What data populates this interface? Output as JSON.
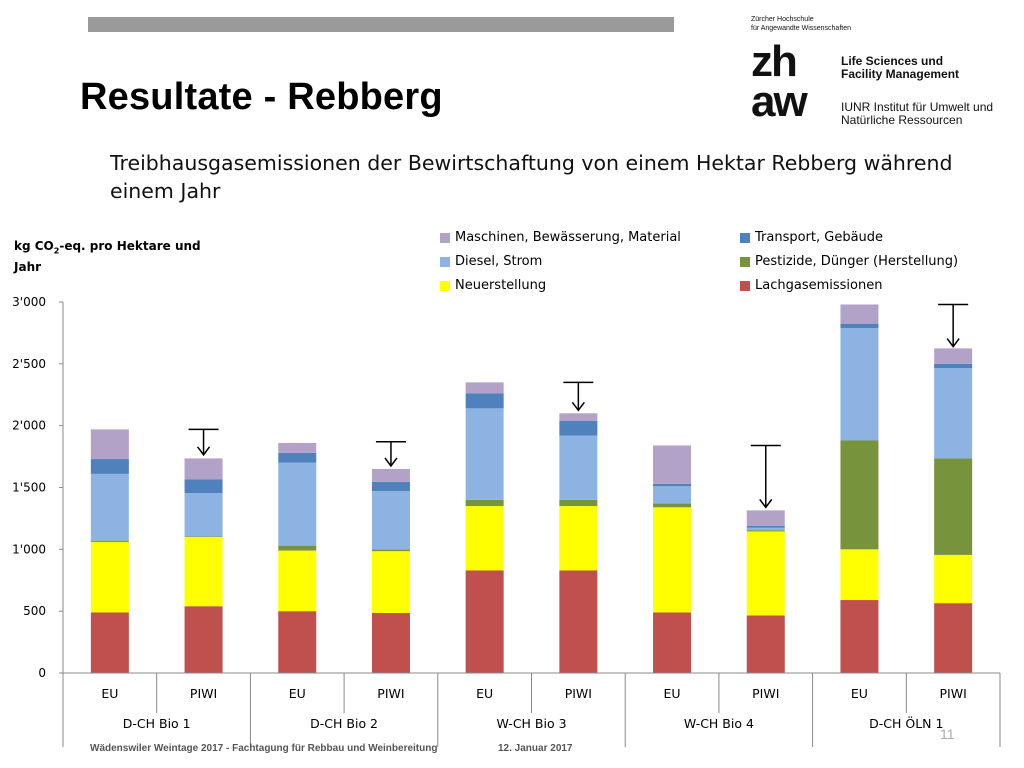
{
  "slide": {
    "title": "Resultate - Rebberg",
    "subtitle": "Treibhausgasemissionen der Bewirtschaftung von einem Hektar Rebberg während einem Jahr",
    "page_number": "11"
  },
  "logo": {
    "org_line1": "Zürcher Hochschule",
    "org_line2": "für Angewandte Wissenschaften",
    "mark_line1": "zh",
    "mark_line2": "aw",
    "school_line1": "Life Sciences und",
    "school_line2": "Facility Management",
    "inst_line1": "IUNR Institut für Umwelt und",
    "inst_line2": "Natürliche Ressourcen"
  },
  "footer": {
    "event": "Wädenswiler Weintage 2017 - Fachtagung für Rebbau und Weinbereitung",
    "date": "12. Januar 2017"
  },
  "chart_data": {
    "type": "bar",
    "stacked": true,
    "ylabel_main": "kg CO",
    "ylabel_sub": "2",
    "ylabel_rest": "-eq. pro Hektare und Jahr",
    "ylim": [
      0,
      3000
    ],
    "yticks": [
      0,
      500,
      1000,
      1500,
      2000,
      2500,
      3000
    ],
    "ytick_labels": [
      "0",
      "500",
      "1'000",
      "1'500",
      "2'000",
      "2'500",
      "3'000"
    ],
    "categories": [
      "EU",
      "PIWI",
      "EU",
      "PIWI",
      "EU",
      "PIWI",
      "EU",
      "PIWI",
      "EU",
      "PIWI"
    ],
    "groups": [
      "D-CH Bio 1",
      "D-CH Bio 2",
      "W-CH Bio 3",
      "W-CH Bio 4",
      "D-CH ÖLN 1"
    ],
    "series": [
      {
        "name": "Lachgasemissionen",
        "color": "#c0504d",
        "values": [
          490,
          540,
          500,
          485,
          830,
          830,
          490,
          465,
          590,
          565
        ]
      },
      {
        "name": "Neuerstellung",
        "color": "#ffff00",
        "values": [
          570,
          560,
          490,
          500,
          520,
          520,
          850,
          680,
          410,
          390
        ]
      },
      {
        "name": "Pestizide, Dünger (Herstellung)",
        "color": "#77933c",
        "values": [
          10,
          5,
          40,
          15,
          50,
          50,
          30,
          10,
          880,
          780
        ]
      },
      {
        "name": "Diesel, Strom",
        "color": "#8db3e2",
        "values": [
          540,
          350,
          670,
          470,
          740,
          520,
          140,
          20,
          910,
          730
        ]
      },
      {
        "name": "Transport, Gebäude",
        "color": "#4f81bd",
        "values": [
          120,
          110,
          80,
          75,
          120,
          120,
          20,
          15,
          35,
          35
        ]
      },
      {
        "name": "Maschinen, Bewässerung, Material",
        "color": "#b2a2c7",
        "values": [
          240,
          170,
          80,
          105,
          90,
          60,
          310,
          125,
          155,
          125
        ]
      }
    ],
    "legend_order": [
      "Maschinen, Bewässerung, Material",
      "Transport, Gebäude",
      "Diesel, Strom",
      "Pestizide, Dünger (Herstellung)",
      "Neuerstellung",
      "Lachgasemissionen"
    ],
    "annotations": [
      {
        "type": "arrow-reduction",
        "category_index": 1,
        "from": 1970,
        "to": 1740
      },
      {
        "type": "arrow-reduction",
        "category_index": 3,
        "from": 1870,
        "to": 1650
      },
      {
        "type": "arrow-reduction",
        "category_index": 5,
        "from": 2350,
        "to": 2100
      },
      {
        "type": "arrow-reduction",
        "category_index": 7,
        "from": 1840,
        "to": 1315
      },
      {
        "type": "arrow-reduction",
        "category_index": 9,
        "from": 2980,
        "to": 2615
      }
    ]
  }
}
